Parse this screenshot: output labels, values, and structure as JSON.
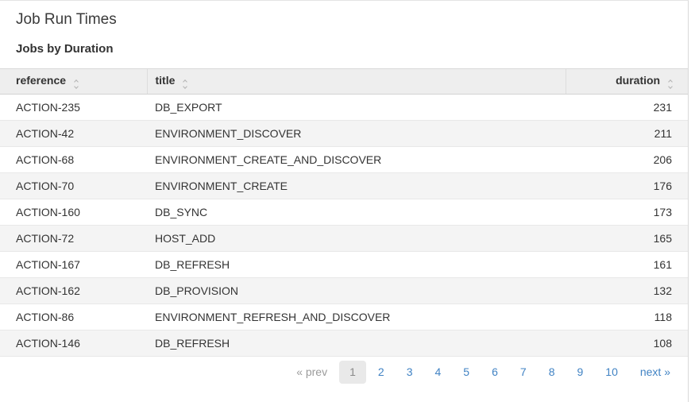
{
  "header": {
    "title": "Job Run Times",
    "subtitle": "Jobs by Duration"
  },
  "table": {
    "columns": [
      {
        "key": "reference",
        "label": "reference"
      },
      {
        "key": "title",
        "label": "title"
      },
      {
        "key": "duration",
        "label": "duration"
      }
    ],
    "rows": [
      {
        "reference": "ACTION-235",
        "title": "DB_EXPORT",
        "duration": "231"
      },
      {
        "reference": "ACTION-42",
        "title": "ENVIRONMENT_DISCOVER",
        "duration": "211"
      },
      {
        "reference": "ACTION-68",
        "title": "ENVIRONMENT_CREATE_AND_DISCOVER",
        "duration": "206"
      },
      {
        "reference": "ACTION-70",
        "title": "ENVIRONMENT_CREATE",
        "duration": "176"
      },
      {
        "reference": "ACTION-160",
        "title": "DB_SYNC",
        "duration": "173"
      },
      {
        "reference": "ACTION-72",
        "title": "HOST_ADD",
        "duration": "165"
      },
      {
        "reference": "ACTION-167",
        "title": "DB_REFRESH",
        "duration": "161"
      },
      {
        "reference": "ACTION-162",
        "title": "DB_PROVISION",
        "duration": "132"
      },
      {
        "reference": "ACTION-86",
        "title": "ENVIRONMENT_REFRESH_AND_DISCOVER",
        "duration": "118"
      },
      {
        "reference": "ACTION-146",
        "title": "DB_REFRESH",
        "duration": "108"
      }
    ]
  },
  "pagination": {
    "prev_label": "« prev",
    "next_label": "next »",
    "pages": [
      "1",
      "2",
      "3",
      "4",
      "5",
      "6",
      "7",
      "8",
      "9",
      "10"
    ],
    "current_page": "1"
  },
  "colors": {
    "link_blue": "#4183c4",
    "header_bg": "#eeeeee",
    "stripe_bg": "#f4f4f4",
    "text": "#333333"
  }
}
